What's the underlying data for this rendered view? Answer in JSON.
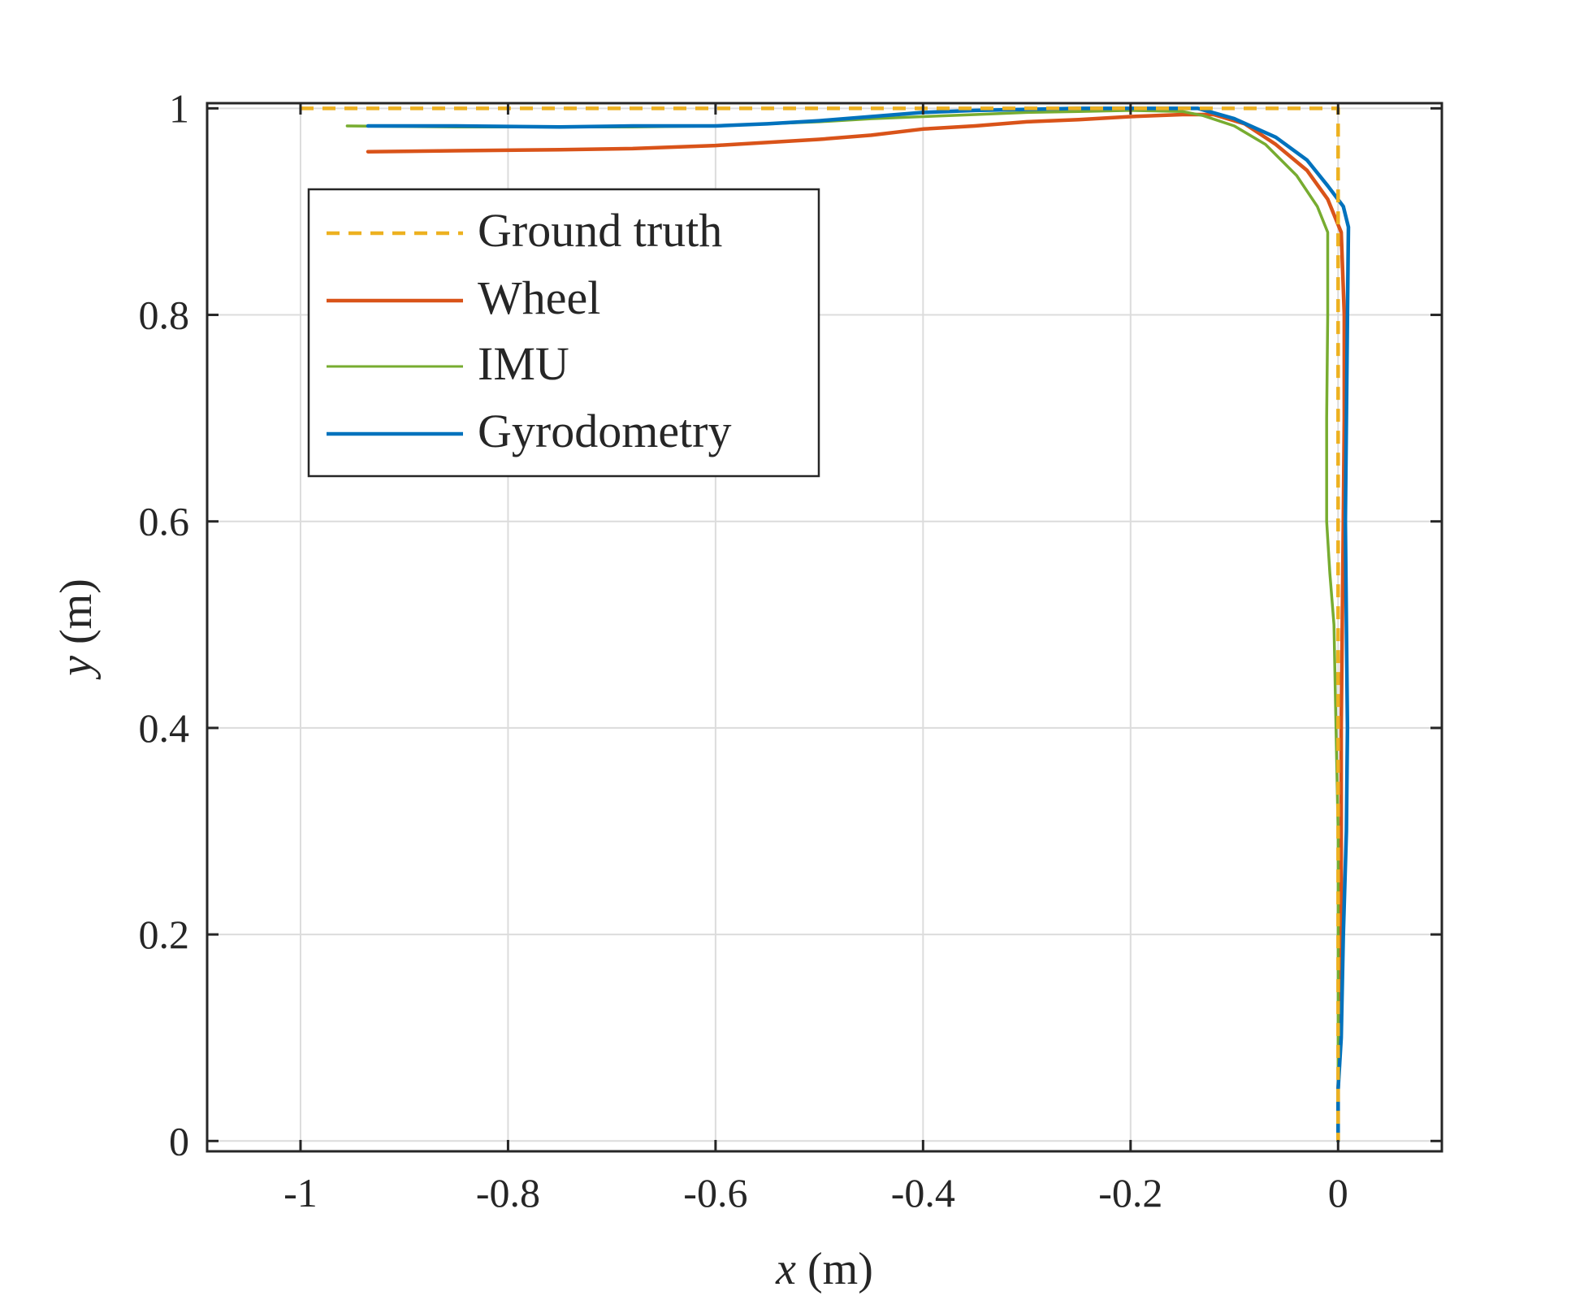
{
  "chart_data": {
    "type": "line",
    "xlabel_var": "x",
    "xlabel_unit": " (m)",
    "ylabel_var": "y",
    "ylabel_unit": " (m)",
    "xlim": [
      -1.09,
      0.1
    ],
    "ylim": [
      -0.01,
      1.005
    ],
    "xticks": [
      -1,
      -0.8,
      -0.6,
      -0.4,
      -0.2,
      0
    ],
    "xtick_labels": [
      "-1",
      "-0.8",
      "-0.6",
      "-0.4",
      "-0.2",
      "0"
    ],
    "yticks": [
      0,
      0.2,
      0.4,
      0.6,
      0.8,
      1
    ],
    "ytick_labels": [
      "0",
      "0.2",
      "0.4",
      "0.6",
      "0.8",
      "1"
    ],
    "grid": true,
    "legend_position": "upper-left",
    "series": [
      {
        "name": "Ground truth",
        "color": "#EDB120",
        "style": "dashed",
        "x": [
          -1.0,
          0.0,
          0.0
        ],
        "y": [
          1.0,
          1.0,
          0.0
        ]
      },
      {
        "name": "Wheel",
        "color": "#D95319",
        "style": "solid",
        "x": [
          -0.935,
          -0.85,
          -0.75,
          -0.68,
          -0.6,
          -0.5,
          -0.45,
          -0.4,
          -0.35,
          -0.3,
          -0.25,
          -0.2,
          -0.15,
          -0.12,
          -0.09,
          -0.06,
          -0.03,
          -0.01,
          0.003,
          0.006,
          0.006,
          0.005,
          0.004,
          0.003,
          0.003,
          0.003,
          0.002,
          0.0,
          0.0
        ],
        "y": [
          0.958,
          0.959,
          0.96,
          0.961,
          0.964,
          0.97,
          0.974,
          0.98,
          0.983,
          0.987,
          0.989,
          0.992,
          0.994,
          0.994,
          0.985,
          0.965,
          0.94,
          0.912,
          0.88,
          0.8,
          0.7,
          0.6,
          0.5,
          0.4,
          0.3,
          0.2,
          0.1,
          0.05,
          0.0
        ]
      },
      {
        "name": "IMU",
        "color": "#77AC30",
        "style": "solid",
        "x": [
          -0.955,
          -0.85,
          -0.75,
          -0.68,
          -0.6,
          -0.55,
          -0.5,
          -0.45,
          -0.4,
          -0.35,
          -0.3,
          -0.25,
          -0.2,
          -0.15,
          -0.13,
          -0.1,
          -0.07,
          -0.04,
          -0.02,
          -0.01,
          -0.01,
          -0.011,
          -0.011,
          -0.008,
          -0.004,
          -0.002,
          0.0,
          0.0,
          0.0
        ],
        "y": [
          0.983,
          0.982,
          0.982,
          0.982,
          0.983,
          0.985,
          0.987,
          0.99,
          0.992,
          0.994,
          0.996,
          0.997,
          0.998,
          0.997,
          0.993,
          0.983,
          0.965,
          0.935,
          0.905,
          0.88,
          0.8,
          0.7,
          0.6,
          0.55,
          0.5,
          0.4,
          0.3,
          0.1,
          0.0
        ]
      },
      {
        "name": "Gyrodometry",
        "color": "#0072BD",
        "style": "solid",
        "x": [
          -0.935,
          -0.85,
          -0.75,
          -0.68,
          -0.6,
          -0.55,
          -0.5,
          -0.45,
          -0.4,
          -0.35,
          -0.3,
          -0.25,
          -0.2,
          -0.16,
          -0.135,
          -0.1,
          -0.06,
          -0.03,
          -0.01,
          0.005,
          0.01,
          0.009,
          0.008,
          0.007,
          0.008,
          0.009,
          0.008,
          0.005,
          0.003,
          0.0,
          0.0
        ],
        "y": [
          0.983,
          0.983,
          0.982,
          0.983,
          0.983,
          0.985,
          0.988,
          0.992,
          0.996,
          0.998,
          0.999,
          1.0,
          1.0,
          1.0,
          1.0,
          0.99,
          0.972,
          0.95,
          0.925,
          0.905,
          0.885,
          0.8,
          0.7,
          0.6,
          0.5,
          0.4,
          0.3,
          0.2,
          0.1,
          0.05,
          0.0
        ]
      }
    ]
  }
}
